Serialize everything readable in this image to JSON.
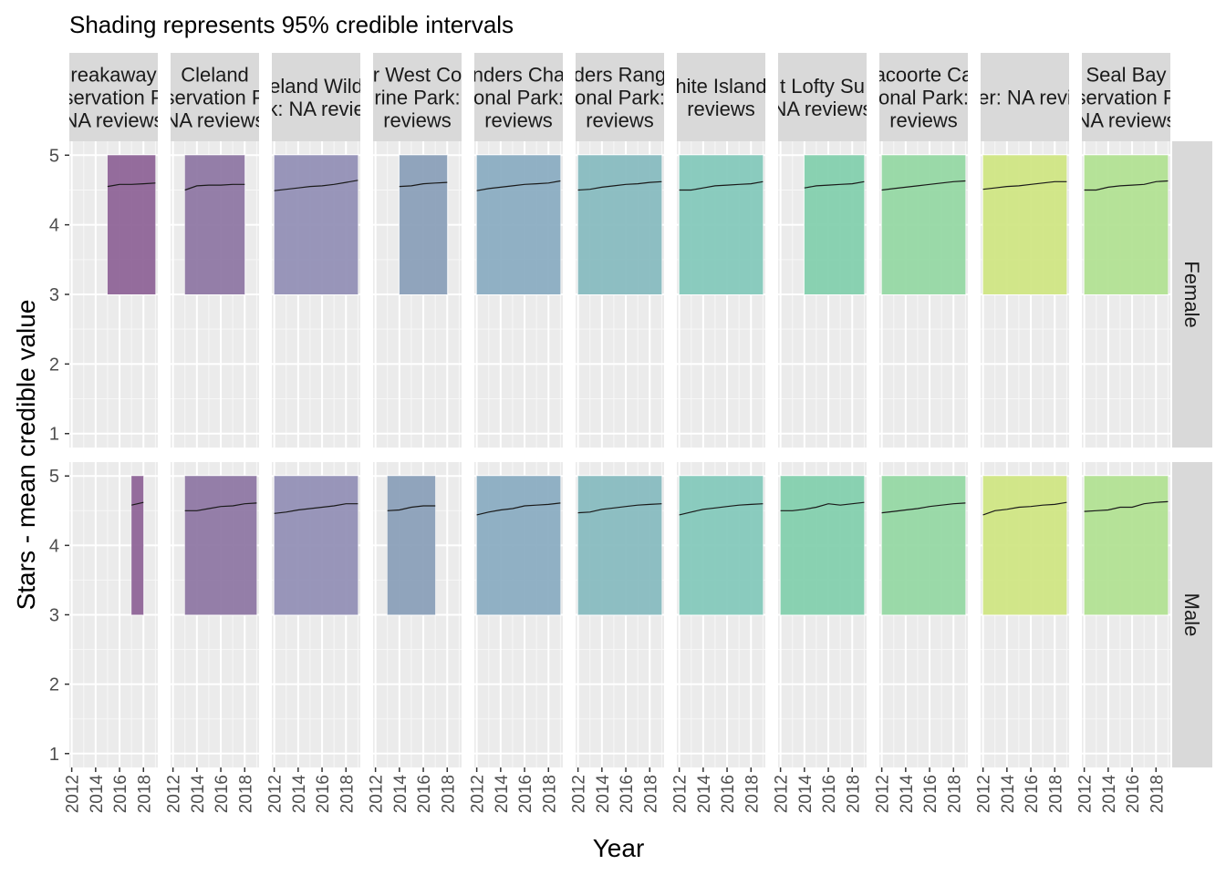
{
  "chart_data": {
    "type": "line",
    "subtitle": "Shading represents 95% credible intervals",
    "xlabel": "Year",
    "ylabel": "Stars - mean credible value",
    "xlim": [
      2011.8,
      2019.2
    ],
    "ylim": [
      0.8,
      5.2
    ],
    "x_ticks": [
      2012,
      2014,
      2016,
      2018
    ],
    "x_tick_labels": [
      "2012",
      "2014",
      "2016",
      "2018"
    ],
    "y_ticks": [
      1,
      2,
      3,
      4,
      5
    ],
    "y_tick_labels": [
      "1",
      "2",
      "3",
      "4",
      "5"
    ],
    "grid": true,
    "legend": "none",
    "band": [
      3,
      5
    ],
    "rows": [
      "Female",
      "Male"
    ],
    "facets": [
      {
        "label": [
          "reakaway",
          "servation P",
          "NA reviews"
        ],
        "color": "#8f6598",
        "series": {
          "Female": {
            "x": [
              2015,
              2016,
              2017,
              2018,
              2019
            ],
            "y": [
              4.55,
              4.58,
              4.58,
              4.59,
              4.6
            ]
          },
          "Male": {
            "x": [
              2017,
              2018
            ],
            "y": [
              4.58,
              4.62
            ]
          }
        }
      },
      {
        "label": [
          "Cleland",
          "servation P",
          "NA reviews"
        ],
        "color": "#8f78a4",
        "series": {
          "Female": {
            "x": [
              2013,
              2014,
              2015,
              2016,
              2017,
              2018
            ],
            "y": [
              4.5,
              4.56,
              4.57,
              4.57,
              4.58,
              4.58
            ]
          },
          "Male": {
            "x": [
              2013,
              2014,
              2015,
              2016,
              2017,
              2018,
              2019
            ],
            "y": [
              4.5,
              4.5,
              4.53,
              4.56,
              4.57,
              4.6,
              4.61
            ]
          }
        }
      },
      {
        "label": [
          "eland Wild",
          "k: NA revie"
        ],
        "color": "#9390b6",
        "series": {
          "Female": {
            "x": [
              2012,
              2013,
              2014,
              2015,
              2016,
              2017,
              2018,
              2019
            ],
            "y": [
              4.49,
              4.51,
              4.53,
              4.55,
              4.56,
              4.58,
              4.61,
              4.64
            ]
          },
          "Male": {
            "x": [
              2012,
              2013,
              2014,
              2015,
              2016,
              2017,
              2018,
              2019
            ],
            "y": [
              4.46,
              4.48,
              4.51,
              4.53,
              4.55,
              4.57,
              4.6,
              4.6
            ]
          }
        }
      },
      {
        "label": [
          "r West Co",
          "rine Park:",
          "reviews"
        ],
        "color": "#8ba0b9",
        "series": {
          "Female": {
            "x": [
              2014,
              2015,
              2016,
              2017,
              2018
            ],
            "y": [
              4.55,
              4.56,
              4.59,
              4.6,
              4.61
            ]
          },
          "Male": {
            "x": [
              2013,
              2014,
              2015,
              2016,
              2017
            ],
            "y": [
              4.5,
              4.51,
              4.55,
              4.57,
              4.57
            ]
          }
        }
      },
      {
        "label": [
          "nders Cha",
          "onal Park:",
          "reviews"
        ],
        "color": "#8badc2",
        "series": {
          "Female": {
            "x": [
              2012,
              2013,
              2014,
              2015,
              2016,
              2017,
              2018,
              2019
            ],
            "y": [
              4.49,
              4.52,
              4.54,
              4.56,
              4.58,
              4.59,
              4.6,
              4.63
            ]
          },
          "Male": {
            "x": [
              2012,
              2013,
              2014,
              2015,
              2016,
              2017,
              2018,
              2019
            ],
            "y": [
              4.44,
              4.48,
              4.51,
              4.53,
              4.57,
              4.58,
              4.59,
              4.61
            ]
          }
        }
      },
      {
        "label": [
          "ders Rang",
          "onal Park:",
          "reviews"
        ],
        "color": "#88bcc0",
        "series": {
          "Female": {
            "x": [
              2012,
              2013,
              2014,
              2015,
              2016,
              2017,
              2018,
              2019
            ],
            "y": [
              4.5,
              4.51,
              4.54,
              4.56,
              4.58,
              4.59,
              4.61,
              4.62
            ]
          },
          "Male": {
            "x": [
              2012,
              2013,
              2014,
              2015,
              2016,
              2017,
              2018,
              2019
            ],
            "y": [
              4.47,
              4.48,
              4.52,
              4.54,
              4.56,
              4.58,
              4.59,
              4.6
            ]
          }
        }
      },
      {
        "label": [
          "hite Island",
          "reviews"
        ],
        "color": "#85c9bc",
        "series": {
          "Female": {
            "x": [
              2012,
              2013,
              2014,
              2015,
              2016,
              2017,
              2018,
              2019
            ],
            "y": [
              4.5,
              4.5,
              4.53,
              4.56,
              4.57,
              4.58,
              4.59,
              4.62
            ]
          },
          "Male": {
            "x": [
              2012,
              2013,
              2014,
              2015,
              2016,
              2017,
              2018,
              2019
            ],
            "y": [
              4.44,
              4.48,
              4.52,
              4.54,
              4.56,
              4.58,
              4.59,
              4.6
            ]
          }
        }
      },
      {
        "label": [
          "t Lofty Su",
          "NA reviews"
        ],
        "color": "#84d0ae",
        "series": {
          "Female": {
            "x": [
              2014,
              2015,
              2016,
              2017,
              2018,
              2019
            ],
            "y": [
              4.53,
              4.56,
              4.57,
              4.58,
              4.59,
              4.62
            ]
          },
          "Male": {
            "x": [
              2012,
              2013,
              2014,
              2015,
              2016,
              2017,
              2018,
              2019
            ],
            "y": [
              4.5,
              4.5,
              4.52,
              4.55,
              4.6,
              4.58,
              4.6,
              4.62
            ]
          }
        }
      },
      {
        "label": [
          "acoorte Ca",
          "onal Park:",
          "reviews"
        ],
        "color": "#96d8a4",
        "series": {
          "Female": {
            "x": [
              2012,
              2013,
              2014,
              2015,
              2016,
              2017,
              2018,
              2019
            ],
            "y": [
              4.5,
              4.52,
              4.54,
              4.56,
              4.58,
              4.6,
              4.62,
              4.63
            ]
          },
          "Male": {
            "x": [
              2012,
              2013,
              2014,
              2015,
              2016,
              2017,
              2018,
              2019
            ],
            "y": [
              4.47,
              4.49,
              4.51,
              4.53,
              4.56,
              4.58,
              4.6,
              4.61
            ]
          }
        }
      },
      {
        "label": [
          "er: NA revi"
        ],
        "color": "#d0e684",
        "series": {
          "Female": {
            "x": [
              2012,
              2013,
              2014,
              2015,
              2016,
              2017,
              2018,
              2019
            ],
            "y": [
              4.51,
              4.53,
              4.55,
              4.56,
              4.58,
              4.6,
              4.62,
              4.62
            ]
          },
          "Male": {
            "x": [
              2012,
              2013,
              2014,
              2015,
              2016,
              2017,
              2018,
              2019
            ],
            "y": [
              4.44,
              4.5,
              4.52,
              4.55,
              4.56,
              4.58,
              4.59,
              4.62
            ]
          }
        }
      },
      {
        "label": [
          "Seal Bay",
          "servation P",
          "NA reviews"
        ],
        "color": "#b2e194",
        "series": {
          "Female": {
            "x": [
              2012,
              2013,
              2014,
              2015,
              2016,
              2017,
              2018,
              2019
            ],
            "y": [
              4.5,
              4.5,
              4.54,
              4.56,
              4.57,
              4.58,
              4.62,
              4.63
            ]
          },
          "Male": {
            "x": [
              2012,
              2013,
              2014,
              2015,
              2016,
              2017,
              2018,
              2019
            ],
            "y": [
              4.49,
              4.5,
              4.51,
              4.55,
              4.55,
              4.6,
              4.62,
              4.63
            ]
          }
        }
      }
    ]
  }
}
